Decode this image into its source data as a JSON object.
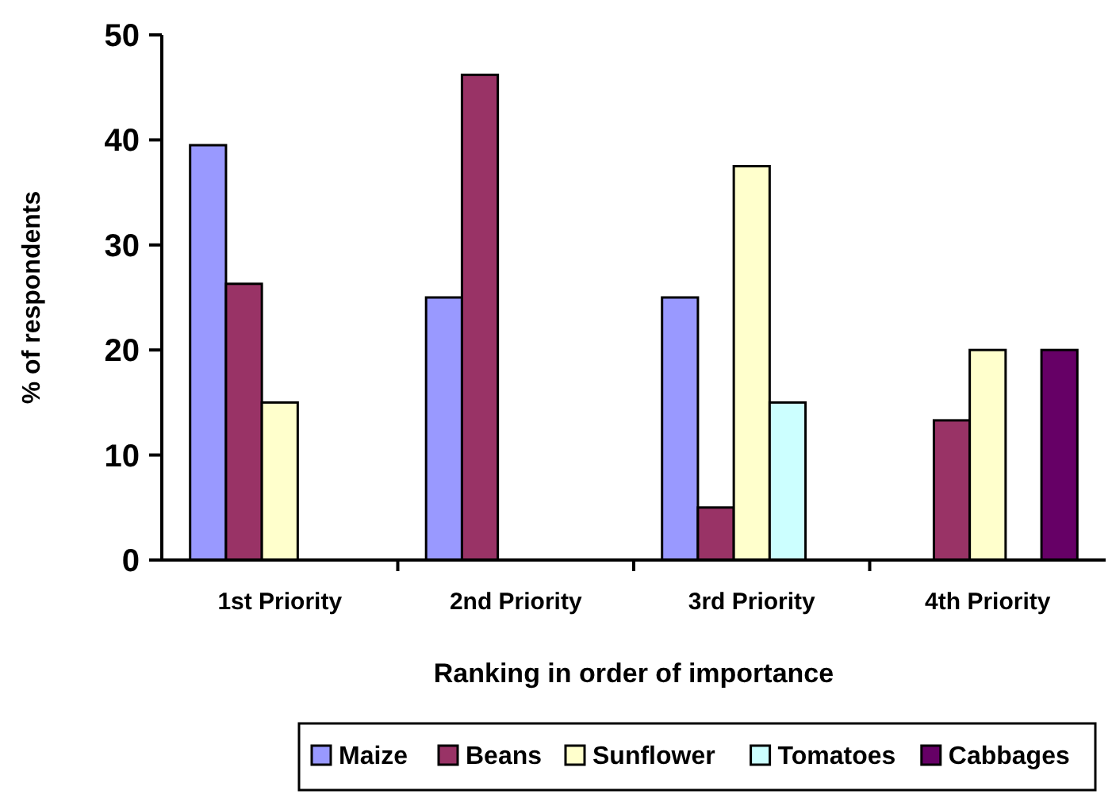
{
  "chart_data": {
    "type": "bar",
    "xlabel": "Ranking in order of importance",
    "ylabel": "% of respondents",
    "categories": [
      "1st Priority",
      "2nd Priority",
      "3rd Priority",
      "4th Priority"
    ],
    "series": [
      {
        "name": "Maize",
        "color": "#9999ff",
        "values": [
          39.5,
          25,
          25,
          null
        ]
      },
      {
        "name": "Beans",
        "color": "#993366",
        "values": [
          26.3,
          46.2,
          5,
          13.3
        ]
      },
      {
        "name": "Sunflower",
        "color": "#ffffcc",
        "values": [
          15,
          null,
          37.5,
          20
        ]
      },
      {
        "name": "Tomatoes",
        "color": "#ccffff",
        "values": [
          null,
          null,
          15,
          null
        ]
      },
      {
        "name": "Cabbages",
        "color": "#660066",
        "values": [
          null,
          null,
          null,
          20
        ]
      }
    ],
    "ylim": [
      0,
      50
    ],
    "yticks": [
      0,
      10,
      20,
      30,
      40,
      50
    ],
    "grid": false,
    "legend": "bottom"
  }
}
